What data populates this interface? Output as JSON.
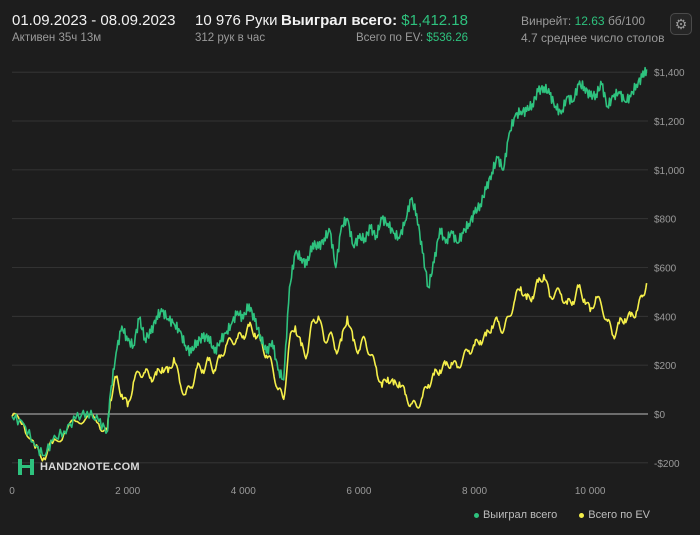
{
  "header": {
    "date_range": "01.09.2023 - 08.09.2023",
    "active_time": "Активен 35ч 13м",
    "hands": "10 976 Руки",
    "hands_per_hour": "312 рук в час",
    "won_label": "Выиграл всего:",
    "won_value": "$1,412.18",
    "ev_label": "Всего по EV:",
    "ev_value": "$536.26",
    "winrate_label": "Винрейт:",
    "winrate_value": "12.63",
    "winrate_unit": "бб/100",
    "tables": "4.7 среднее число столов"
  },
  "logo_text": "HAND2NOTE.COM",
  "icons": {
    "settings": "gear-icon"
  },
  "colors": {
    "won": "#2ec27e",
    "ev": "#f5ef4a",
    "background": "#1d1d1d",
    "grid": "#3a3a3a",
    "zero": "#bdbdbd"
  },
  "chart_data": {
    "type": "line",
    "xlim": [
      0,
      11000
    ],
    "ylim": [
      -250,
      1450
    ],
    "x_ticks": [
      0,
      2000,
      4000,
      6000,
      8000,
      10000
    ],
    "x_tick_labels": [
      "0",
      "2 000",
      "4 000",
      "6 000",
      "8 000",
      "10 000"
    ],
    "y_ticks": [
      -200,
      0,
      200,
      400,
      600,
      800,
      1000,
      1200,
      1400
    ],
    "y_tick_labels": [
      "-$200",
      "$0",
      "$200",
      "$400",
      "$600",
      "$800",
      "$1,000",
      "$1,200",
      "$1,400"
    ],
    "grid": true,
    "legend_position": "bottom-right",
    "series": [
      {
        "name": "Выиграл всего",
        "color": "#2ec27e",
        "x": [
          0,
          200,
          400,
          550,
          700,
          900,
          1100,
          1300,
          1500,
          1650,
          1700,
          1800,
          1900,
          2000,
          2100,
          2200,
          2300,
          2400,
          2500,
          2600,
          2700,
          2800,
          2900,
          3000,
          3100,
          3200,
          3300,
          3400,
          3500,
          3600,
          3700,
          3800,
          3900,
          4000,
          4100,
          4200,
          4300,
          4400,
          4500,
          4600,
          4700,
          4800,
          4900,
          5000,
          5100,
          5200,
          5300,
          5400,
          5500,
          5600,
          5700,
          5800,
          5900,
          6000,
          6100,
          6200,
          6300,
          6400,
          6500,
          6600,
          6700,
          6800,
          6900,
          7000,
          7100,
          7200,
          7300,
          7400,
          7500,
          7600,
          7700,
          7800,
          7900,
          8000,
          8100,
          8200,
          8300,
          8400,
          8500,
          8600,
          8700,
          8800,
          8900,
          9000,
          9100,
          9200,
          9300,
          9400,
          9500,
          9600,
          9700,
          9800,
          9900,
          10000,
          10100,
          10200,
          10300,
          10400,
          10500,
          10600,
          10700,
          10800,
          10900,
          10976
        ],
        "y": [
          -10,
          -40,
          -130,
          -170,
          -110,
          -70,
          -20,
          10,
          -30,
          -70,
          80,
          250,
          360,
          300,
          280,
          390,
          310,
          330,
          400,
          420,
          390,
          370,
          340,
          280,
          250,
          300,
          310,
          320,
          250,
          300,
          330,
          370,
          420,
          390,
          450,
          380,
          320,
          250,
          300,
          180,
          140,
          520,
          660,
          640,
          610,
          700,
          680,
          720,
          750,
          600,
          770,
          800,
          690,
          720,
          720,
          760,
          730,
          800,
          780,
          740,
          720,
          790,
          880,
          820,
          660,
          520,
          620,
          760,
          700,
          750,
          700,
          740,
          780,
          820,
          860,
          920,
          990,
          1050,
          1000,
          1150,
          1220,
          1240,
          1240,
          1270,
          1320,
          1340,
          1310,
          1260,
          1230,
          1300,
          1280,
          1350,
          1340,
          1300,
          1310,
          1350,
          1260,
          1300,
          1320,
          1280,
          1300,
          1350,
          1380,
          1412
        ]
      },
      {
        "name": "Всего по EV",
        "color": "#f5ef4a",
        "x": [
          0,
          200,
          400,
          550,
          700,
          900,
          1100,
          1300,
          1500,
          1650,
          1700,
          1800,
          1900,
          2000,
          2100,
          2200,
          2300,
          2400,
          2500,
          2600,
          2700,
          2800,
          2900,
          3000,
          3100,
          3200,
          3300,
          3400,
          3500,
          3600,
          3700,
          3800,
          3900,
          4000,
          4100,
          4200,
          4300,
          4400,
          4500,
          4600,
          4700,
          4800,
          4900,
          5000,
          5100,
          5200,
          5300,
          5400,
          5500,
          5600,
          5700,
          5800,
          5900,
          6000,
          6100,
          6200,
          6300,
          6400,
          6500,
          6600,
          6700,
          6800,
          6900,
          7000,
          7100,
          7200,
          7300,
          7400,
          7500,
          7600,
          7700,
          7800,
          7900,
          8000,
          8100,
          8200,
          8300,
          8400,
          8500,
          8600,
          8700,
          8800,
          8900,
          9000,
          9100,
          9200,
          9300,
          9400,
          9500,
          9600,
          9700,
          9800,
          9900,
          10000,
          10100,
          10200,
          10300,
          10400,
          10500,
          10600,
          10700,
          10800,
          10900,
          10976
        ],
        "y": [
          -10,
          -40,
          -140,
          -180,
          -120,
          -80,
          -30,
          -10,
          -40,
          -70,
          60,
          150,
          80,
          30,
          130,
          170,
          170,
          150,
          160,
          190,
          170,
          230,
          130,
          80,
          110,
          190,
          180,
          220,
          180,
          230,
          280,
          300,
          310,
          320,
          360,
          330,
          300,
          240,
          200,
          100,
          60,
          300,
          360,
          280,
          240,
          380,
          400,
          300,
          330,
          260,
          300,
          400,
          300,
          260,
          310,
          240,
          190,
          110,
          150,
          120,
          130,
          80,
          40,
          30,
          70,
          120,
          160,
          180,
          200,
          210,
          190,
          230,
          260,
          280,
          300,
          320,
          360,
          380,
          340,
          400,
          470,
          520,
          470,
          480,
          540,
          570,
          480,
          500,
          490,
          450,
          460,
          520,
          470,
          420,
          480,
          440,
          380,
          320,
          370,
          390,
          400,
          420,
          480,
          536
        ]
      }
    ]
  }
}
